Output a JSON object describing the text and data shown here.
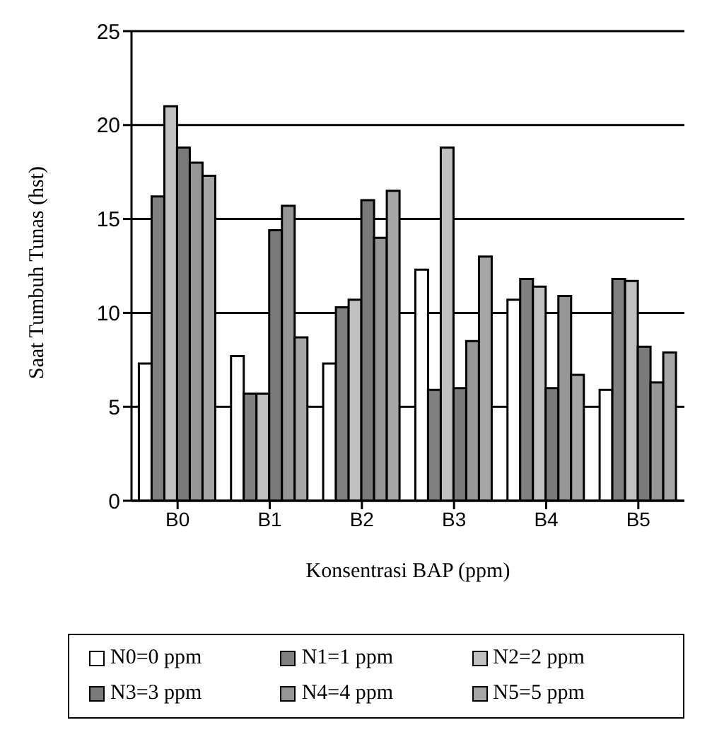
{
  "chart_data": {
    "type": "bar",
    "xlabel": "Konsentrasi BAP (ppm)",
    "ylabel": "Saat Tumbuh Tunas (hst)",
    "categories": [
      "B0",
      "B1",
      "B2",
      "B3",
      "B4",
      "B5"
    ],
    "series": [
      {
        "name": "N0=0 ppm",
        "color": "#ffffff",
        "values": [
          7.3,
          7.7,
          7.3,
          12.3,
          10.7,
          5.9
        ]
      },
      {
        "name": "N1=1 ppm",
        "color": "#808080",
        "values": [
          16.2,
          5.7,
          10.3,
          5.9,
          11.8,
          11.8
        ]
      },
      {
        "name": "N2=2 ppm",
        "color": "#c0c0c0",
        "values": [
          21.0,
          5.7,
          10.7,
          18.8,
          11.4,
          11.7
        ]
      },
      {
        "name": "N3=3 ppm",
        "color": "#7a7a7a",
        "values": [
          18.8,
          14.4,
          16.0,
          6.0,
          6.0,
          8.2
        ]
      },
      {
        "name": "N4=4 ppm",
        "color": "#969696",
        "values": [
          18.0,
          15.7,
          14.0,
          8.5,
          10.9,
          6.3
        ]
      },
      {
        "name": "N5=5 ppm",
        "color": "#a6a6a6",
        "values": [
          17.3,
          8.7,
          16.5,
          13.0,
          6.7,
          7.9
        ]
      }
    ],
    "ylim": [
      0,
      25
    ],
    "yticks": [
      0,
      5,
      10,
      15,
      20,
      25
    ],
    "grid": "y",
    "legend": "bottom"
  }
}
